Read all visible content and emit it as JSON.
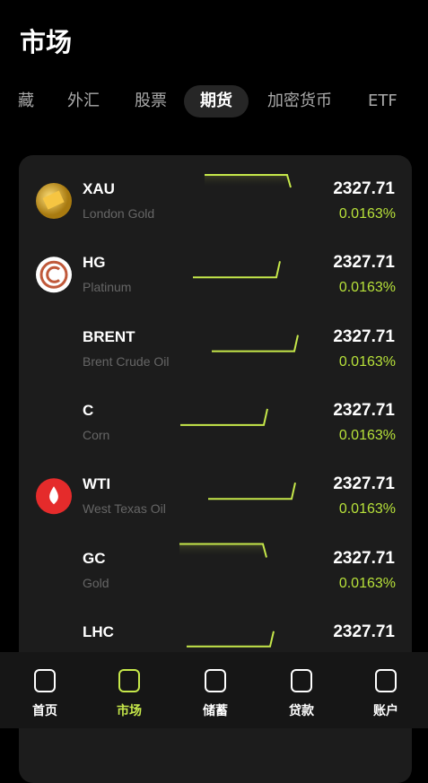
{
  "header": {
    "title": "市场"
  },
  "tabs": [
    "藏",
    "外汇",
    "股票",
    "期货",
    "加密货币",
    "ETF"
  ],
  "list": [
    {
      "symbol": "XAU",
      "name": "London Gold",
      "price": "2327.71",
      "change": "0.0163%"
    },
    {
      "symbol": "HG",
      "name": "Platinum",
      "price": "2327.71",
      "change": "0.0163%"
    },
    {
      "symbol": "BRENT",
      "name": "Brent Crude Oil",
      "price": "2327.71",
      "change": "0.0163%"
    },
    {
      "symbol": "C",
      "name": "Corn",
      "price": "2327.71",
      "change": "0.0163%"
    },
    {
      "symbol": "WTI",
      "name": "West Texas Oil",
      "price": "2327.71",
      "change": "0.0163%"
    },
    {
      "symbol": "GC",
      "name": "Gold",
      "price": "2327.71",
      "change": "0.0163%"
    },
    {
      "symbol": "LHC",
      "price": "2327.71"
    }
  ],
  "nav": [
    "首页",
    "市场",
    "储蓄",
    "贷款",
    "账户"
  ]
}
